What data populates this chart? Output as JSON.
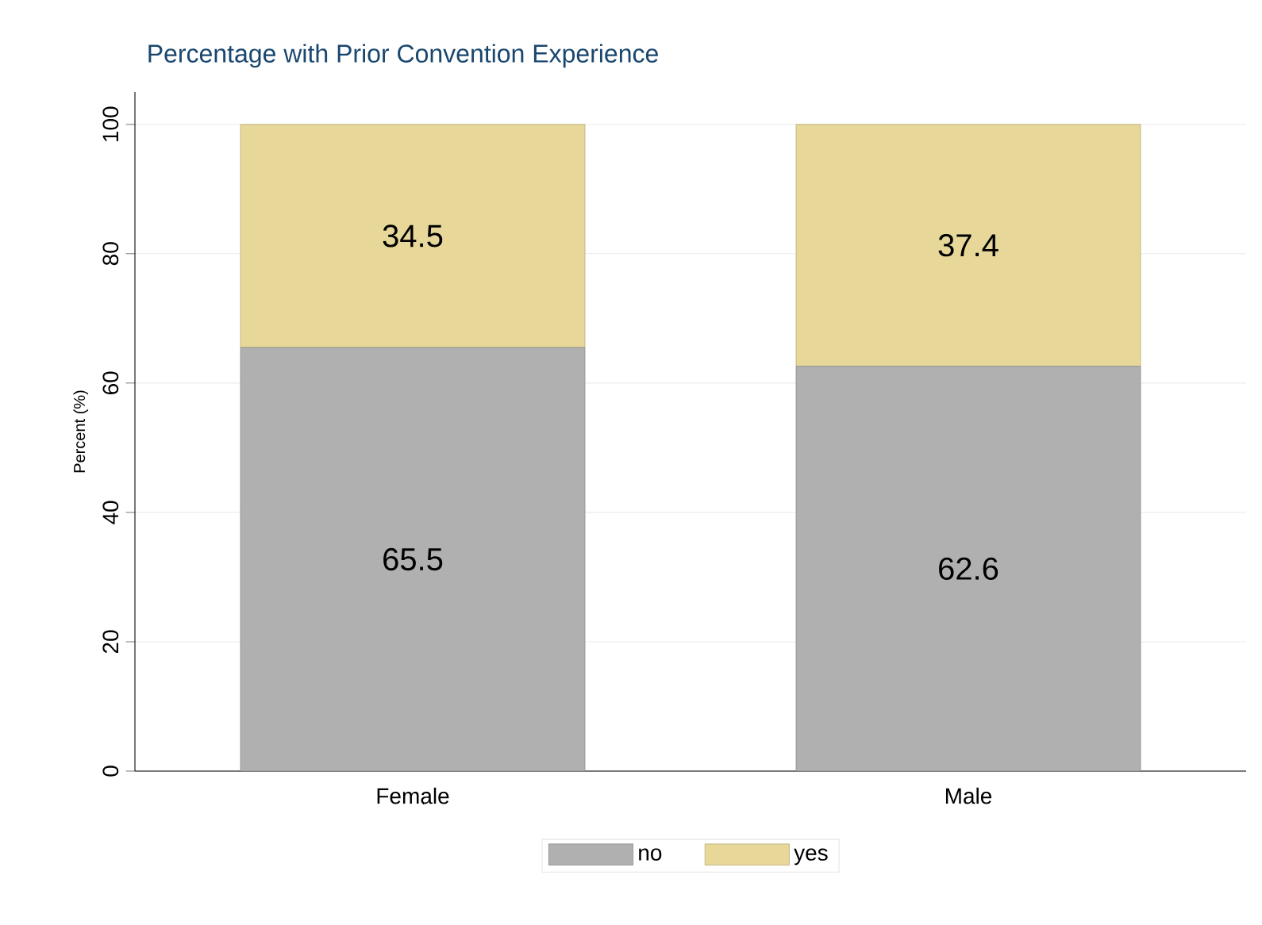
{
  "chart_data": {
    "type": "bar",
    "stacked": true,
    "title": "Percentage with Prior Convention Experience",
    "ylabel": "Percent (%)",
    "categories": [
      "Female",
      "Male"
    ],
    "series": [
      {
        "name": "no",
        "color": "#b0b0b0",
        "values": [
          65.5,
          62.6
        ]
      },
      {
        "name": "yes",
        "color": "#e7d899",
        "values": [
          34.5,
          37.4
        ]
      }
    ],
    "ylim": [
      0,
      105
    ],
    "yticks": [
      0,
      20,
      40,
      60,
      80,
      100
    ],
    "grid": "y",
    "legend": "bottom",
    "data_labels": true
  }
}
